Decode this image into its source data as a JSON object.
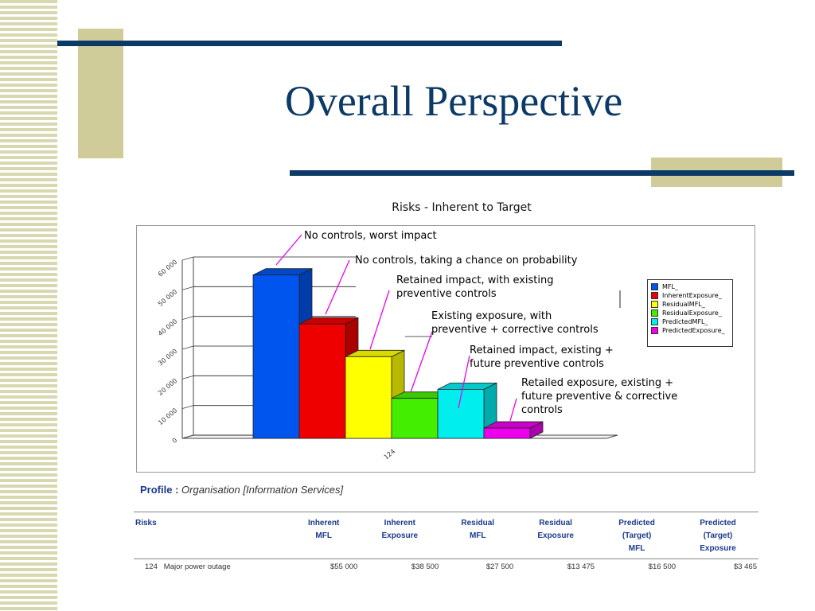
{
  "slide": {
    "title": "Overall Perspective",
    "accent_navy": "#0c3a66",
    "accent_tan": "#cfcc99"
  },
  "chart_data": {
    "type": "bar",
    "title": "Risks - Inherent to Target",
    "categories": [
      "124"
    ],
    "series": [
      {
        "name": "MFL_",
        "values": [
          55000
        ],
        "color": "#0055ee"
      },
      {
        "name": "InherentExposure_",
        "values": [
          38500
        ],
        "color": "#ee0000"
      },
      {
        "name": "ResidualMFL_",
        "values": [
          27500
        ],
        "color": "#ffff00"
      },
      {
        "name": "ResidualExposure_",
        "values": [
          13475
        ],
        "color": "#44ee00"
      },
      {
        "name": "PredictedMFL_",
        "values": [
          16500
        ],
        "color": "#00eeee"
      },
      {
        "name": "PredictedExposure_",
        "values": [
          3465
        ],
        "color": "#ee00ee"
      }
    ],
    "ylim": [
      0,
      60000
    ],
    "yticks": [
      "0",
      "10 000",
      "20 000",
      "30 000",
      "40 000",
      "50 000",
      "60 000"
    ],
    "grid": true,
    "legend": "right",
    "annotations": [
      {
        "line1": "No controls, worst impact",
        "line2": ""
      },
      {
        "line1": "No controls, taking a chance on probability",
        "line2": ""
      },
      {
        "line1": "Retained impact, with existing",
        "line2": "preventive controls"
      },
      {
        "line1": "Existing exposure, with",
        "line2": "preventive + corrective controls"
      },
      {
        "line1": "Retained impact, existing +",
        "line2": "future preventive controls"
      },
      {
        "line1": "Retailed exposure, existing +",
        "line2": "future preventive & corrective",
        "line3": "controls"
      }
    ]
  },
  "profile": {
    "label": "Profile :",
    "value": "Organisation [Information Services]"
  },
  "table": {
    "headers": [
      {
        "l1": "Risks",
        "l2": "",
        "l3": ""
      },
      {
        "l1": "Inherent",
        "l2": "MFL",
        "l3": ""
      },
      {
        "l1": "Inherent",
        "l2": "Exposure",
        "l3": ""
      },
      {
        "l1": "Residual",
        "l2": "MFL",
        "l3": ""
      },
      {
        "l1": "Residual",
        "l2": "Exposure",
        "l3": ""
      },
      {
        "l1": "Predicted",
        "l2": "(Target)",
        "l3": "MFL"
      },
      {
        "l1": "Predicted",
        "l2": "(Target)",
        "l3": "Exposure"
      }
    ],
    "rows": [
      {
        "id": "124",
        "name": "Major power outage",
        "values": [
          "$55 000",
          "$38 500",
          "$27 500",
          "$13 475",
          "$16 500",
          "$3 465"
        ]
      }
    ]
  }
}
